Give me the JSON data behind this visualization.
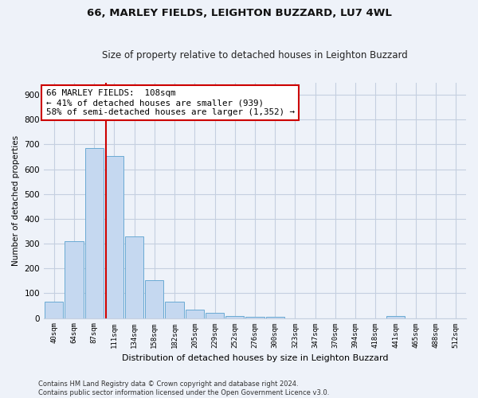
{
  "title": "66, MARLEY FIELDS, LEIGHTON BUZZARD, LU7 4WL",
  "subtitle": "Size of property relative to detached houses in Leighton Buzzard",
  "xlabel": "Distribution of detached houses by size in Leighton Buzzard",
  "ylabel": "Number of detached properties",
  "bins": [
    "40sqm",
    "64sqm",
    "87sqm",
    "111sqm",
    "134sqm",
    "158sqm",
    "182sqm",
    "205sqm",
    "229sqm",
    "252sqm",
    "276sqm",
    "300sqm",
    "323sqm",
    "347sqm",
    "370sqm",
    "394sqm",
    "418sqm",
    "441sqm",
    "465sqm",
    "488sqm",
    "512sqm"
  ],
  "bar_values": [
    65,
    310,
    687,
    653,
    330,
    153,
    67,
    35,
    20,
    8,
    4,
    4,
    0,
    0,
    0,
    0,
    0,
    8,
    0,
    0,
    0
  ],
  "bar_color": "#c5d8f0",
  "bar_edge_color": "#6aaad4",
  "vline_position": 2.57,
  "vline_color": "#cc0000",
  "annotation_box_edge_color": "#cc0000",
  "annotation_box_fill": "#ffffff",
  "property_label": "66 MARLEY FIELDS:  108sqm",
  "annotation_line1": "← 41% of detached houses are smaller (939)",
  "annotation_line2": "58% of semi-detached houses are larger (1,352) →",
  "ylim": [
    0,
    950
  ],
  "yticks": [
    0,
    100,
    200,
    300,
    400,
    500,
    600,
    700,
    800,
    900
  ],
  "footer_line1": "Contains HM Land Registry data © Crown copyright and database right 2024.",
  "footer_line2": "Contains public sector information licensed under the Open Government Licence v3.0.",
  "background_color": "#eef2f9",
  "grid_color": "#c5cfe0",
  "title_fontsize": 9.5,
  "subtitle_fontsize": 8.5
}
